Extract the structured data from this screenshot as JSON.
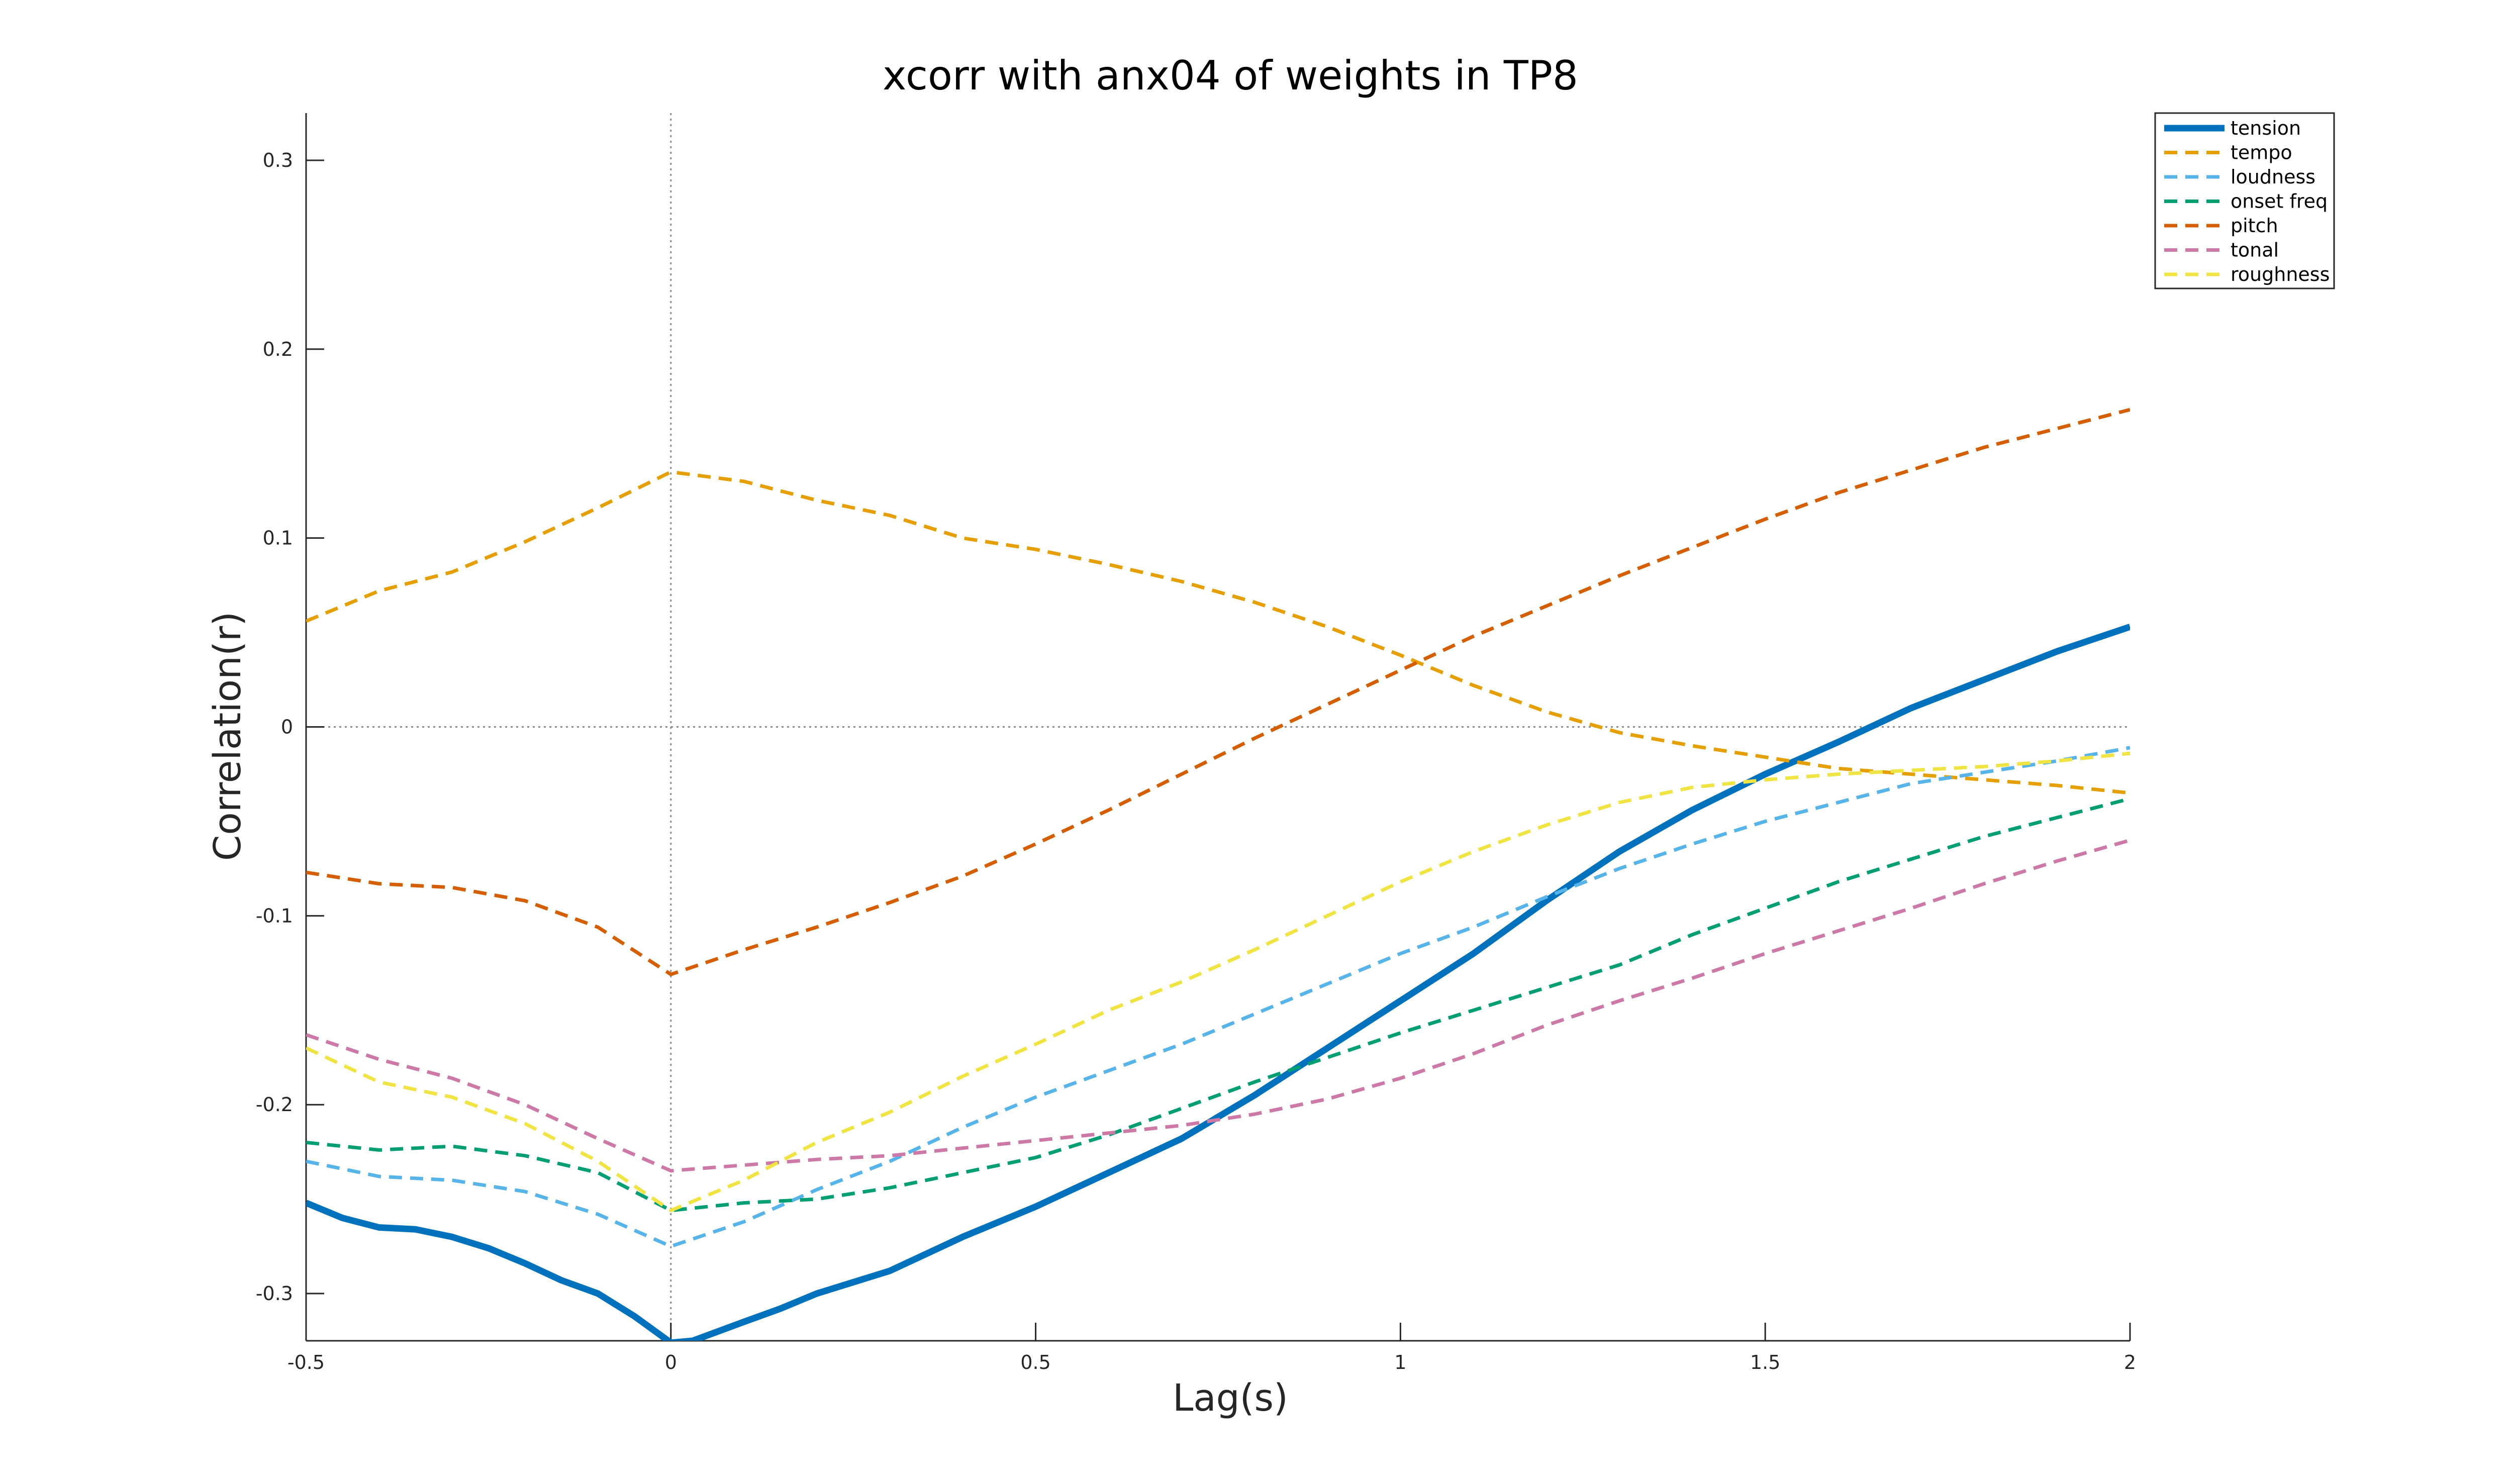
{
  "chart_data": {
    "type": "line",
    "title": "xcorr with anx04 of weights in TP8",
    "xlabel": "Lag(s)",
    "ylabel": "Correlation(r)",
    "xlim": [
      -0.5,
      2
    ],
    "ylim": [
      -0.325,
      0.325
    ],
    "xticks": [
      -0.5,
      0,
      0.5,
      1,
      1.5,
      2
    ],
    "xtick_labels": [
      "-0.5",
      "0",
      "0.5",
      "1",
      "1.5",
      "2"
    ],
    "yticks": [
      -0.3,
      -0.2,
      -0.1,
      0,
      0.1,
      0.2,
      0.3
    ],
    "ytick_labels": [
      "-0.3",
      "-0.2",
      "-0.1",
      "0",
      "0.1",
      "0.2",
      "0.3"
    ],
    "grid": false,
    "reference_lines": {
      "x0": true,
      "y0": true
    },
    "legend_position": "top-right",
    "series": [
      {
        "name": "tension",
        "color": "#0072BD",
        "dashed": false,
        "width": "thick",
        "points": [
          [
            -0.5,
            -0.252
          ],
          [
            -0.45,
            -0.26
          ],
          [
            -0.4,
            -0.265
          ],
          [
            -0.35,
            -0.266
          ],
          [
            -0.3,
            -0.27
          ],
          [
            -0.25,
            -0.276
          ],
          [
            -0.2,
            -0.284
          ],
          [
            -0.15,
            -0.293
          ],
          [
            -0.1,
            -0.3
          ],
          [
            -0.05,
            -0.312
          ],
          [
            0.0,
            -0.326
          ],
          [
            0.03,
            -0.325
          ],
          [
            0.1,
            -0.315
          ],
          [
            0.15,
            -0.308
          ],
          [
            0.2,
            -0.3
          ],
          [
            0.3,
            -0.288
          ],
          [
            0.4,
            -0.27
          ],
          [
            0.5,
            -0.254
          ],
          [
            0.6,
            -0.236
          ],
          [
            0.7,
            -0.218
          ],
          [
            0.8,
            -0.195
          ],
          [
            0.9,
            -0.17
          ],
          [
            1.0,
            -0.145
          ],
          [
            1.1,
            -0.12
          ],
          [
            1.2,
            -0.092
          ],
          [
            1.3,
            -0.066
          ],
          [
            1.4,
            -0.044
          ],
          [
            1.5,
            -0.025
          ],
          [
            1.6,
            -0.008
          ],
          [
            1.7,
            0.01
          ],
          [
            1.8,
            0.025
          ],
          [
            1.9,
            0.04
          ],
          [
            2.0,
            0.053
          ]
        ]
      },
      {
        "name": "tempo",
        "color": "#E69F00",
        "dashed": true,
        "width": "normal",
        "points": [
          [
            -0.5,
            0.056
          ],
          [
            -0.4,
            0.072
          ],
          [
            -0.3,
            0.082
          ],
          [
            -0.2,
            0.098
          ],
          [
            -0.1,
            0.116
          ],
          [
            0.0,
            0.135
          ],
          [
            0.1,
            0.13
          ],
          [
            0.2,
            0.12
          ],
          [
            0.3,
            0.112
          ],
          [
            0.4,
            0.1
          ],
          [
            0.5,
            0.094
          ],
          [
            0.6,
            0.086
          ],
          [
            0.7,
            0.077
          ],
          [
            0.8,
            0.066
          ],
          [
            0.9,
            0.053
          ],
          [
            1.0,
            0.038
          ],
          [
            1.1,
            0.022
          ],
          [
            1.2,
            0.008
          ],
          [
            1.3,
            -0.003
          ],
          [
            1.4,
            -0.01
          ],
          [
            1.5,
            -0.016
          ],
          [
            1.6,
            -0.022
          ],
          [
            1.7,
            -0.025
          ],
          [
            1.8,
            -0.028
          ],
          [
            1.9,
            -0.031
          ],
          [
            2.0,
            -0.035
          ]
        ]
      },
      {
        "name": "loudness",
        "color": "#56B4E9",
        "dashed": true,
        "width": "normal",
        "points": [
          [
            -0.5,
            -0.23
          ],
          [
            -0.4,
            -0.238
          ],
          [
            -0.3,
            -0.24
          ],
          [
            -0.2,
            -0.246
          ],
          [
            -0.1,
            -0.258
          ],
          [
            0.0,
            -0.275
          ],
          [
            0.1,
            -0.262
          ],
          [
            0.2,
            -0.245
          ],
          [
            0.3,
            -0.23
          ],
          [
            0.4,
            -0.212
          ],
          [
            0.5,
            -0.196
          ],
          [
            0.6,
            -0.182
          ],
          [
            0.7,
            -0.168
          ],
          [
            0.8,
            -0.152
          ],
          [
            0.9,
            -0.136
          ],
          [
            1.0,
            -0.12
          ],
          [
            1.1,
            -0.106
          ],
          [
            1.2,
            -0.09
          ],
          [
            1.3,
            -0.075
          ],
          [
            1.4,
            -0.062
          ],
          [
            1.5,
            -0.05
          ],
          [
            1.6,
            -0.04
          ],
          [
            1.7,
            -0.03
          ],
          [
            1.8,
            -0.024
          ],
          [
            1.9,
            -0.018
          ],
          [
            2.0,
            -0.011
          ]
        ]
      },
      {
        "name": "onset freq",
        "color": "#009E73",
        "dashed": true,
        "width": "normal",
        "points": [
          [
            -0.5,
            -0.22
          ],
          [
            -0.4,
            -0.224
          ],
          [
            -0.3,
            -0.222
          ],
          [
            -0.2,
            -0.227
          ],
          [
            -0.1,
            -0.236
          ],
          [
            0.0,
            -0.256
          ],
          [
            0.1,
            -0.252
          ],
          [
            0.2,
            -0.25
          ],
          [
            0.3,
            -0.244
          ],
          [
            0.4,
            -0.236
          ],
          [
            0.5,
            -0.228
          ],
          [
            0.6,
            -0.216
          ],
          [
            0.7,
            -0.202
          ],
          [
            0.8,
            -0.188
          ],
          [
            0.9,
            -0.175
          ],
          [
            1.0,
            -0.162
          ],
          [
            1.1,
            -0.15
          ],
          [
            1.2,
            -0.138
          ],
          [
            1.3,
            -0.126
          ],
          [
            1.4,
            -0.11
          ],
          [
            1.5,
            -0.096
          ],
          [
            1.6,
            -0.082
          ],
          [
            1.7,
            -0.07
          ],
          [
            1.8,
            -0.058
          ],
          [
            1.9,
            -0.048
          ],
          [
            2.0,
            -0.038
          ]
        ]
      },
      {
        "name": "pitch",
        "color": "#D55E00",
        "dashed": true,
        "width": "normal",
        "points": [
          [
            -0.5,
            -0.077
          ],
          [
            -0.4,
            -0.083
          ],
          [
            -0.3,
            -0.085
          ],
          [
            -0.2,
            -0.092
          ],
          [
            -0.1,
            -0.106
          ],
          [
            0.0,
            -0.131
          ],
          [
            0.1,
            -0.118
          ],
          [
            0.2,
            -0.106
          ],
          [
            0.3,
            -0.093
          ],
          [
            0.4,
            -0.079
          ],
          [
            0.5,
            -0.062
          ],
          [
            0.6,
            -0.044
          ],
          [
            0.7,
            -0.025
          ],
          [
            0.8,
            -0.006
          ],
          [
            0.9,
            0.012
          ],
          [
            1.0,
            0.03
          ],
          [
            1.1,
            0.048
          ],
          [
            1.2,
            0.064
          ],
          [
            1.3,
            0.08
          ],
          [
            1.4,
            0.095
          ],
          [
            1.5,
            0.11
          ],
          [
            1.6,
            0.124
          ],
          [
            1.7,
            0.136
          ],
          [
            1.8,
            0.148
          ],
          [
            1.9,
            0.158
          ],
          [
            2.0,
            0.168
          ]
        ]
      },
      {
        "name": "tonal",
        "color": "#CC79A7",
        "dashed": true,
        "width": "normal",
        "points": [
          [
            -0.5,
            -0.163
          ],
          [
            -0.4,
            -0.176
          ],
          [
            -0.3,
            -0.186
          ],
          [
            -0.2,
            -0.2
          ],
          [
            -0.1,
            -0.218
          ],
          [
            0.0,
            -0.235
          ],
          [
            0.1,
            -0.232
          ],
          [
            0.2,
            -0.229
          ],
          [
            0.3,
            -0.227
          ],
          [
            0.4,
            -0.223
          ],
          [
            0.5,
            -0.219
          ],
          [
            0.6,
            -0.215
          ],
          [
            0.7,
            -0.211
          ],
          [
            0.8,
            -0.205
          ],
          [
            0.9,
            -0.197
          ],
          [
            1.0,
            -0.186
          ],
          [
            1.1,
            -0.173
          ],
          [
            1.2,
            -0.158
          ],
          [
            1.3,
            -0.145
          ],
          [
            1.4,
            -0.133
          ],
          [
            1.5,
            -0.12
          ],
          [
            1.6,
            -0.108
          ],
          [
            1.7,
            -0.096
          ],
          [
            1.8,
            -0.083
          ],
          [
            1.9,
            -0.071
          ],
          [
            2.0,
            -0.06
          ]
        ]
      },
      {
        "name": "roughness",
        "color": "#F0E442",
        "dashed": true,
        "width": "normal",
        "points": [
          [
            -0.5,
            -0.17
          ],
          [
            -0.4,
            -0.188
          ],
          [
            -0.3,
            -0.196
          ],
          [
            -0.2,
            -0.21
          ],
          [
            -0.1,
            -0.23
          ],
          [
            0.0,
            -0.256
          ],
          [
            0.1,
            -0.24
          ],
          [
            0.2,
            -0.22
          ],
          [
            0.3,
            -0.204
          ],
          [
            0.4,
            -0.185
          ],
          [
            0.5,
            -0.168
          ],
          [
            0.6,
            -0.15
          ],
          [
            0.7,
            -0.135
          ],
          [
            0.8,
            -0.118
          ],
          [
            0.9,
            -0.1
          ],
          [
            1.0,
            -0.082
          ],
          [
            1.1,
            -0.066
          ],
          [
            1.2,
            -0.052
          ],
          [
            1.3,
            -0.04
          ],
          [
            1.4,
            -0.032
          ],
          [
            1.5,
            -0.028
          ],
          [
            1.6,
            -0.025
          ],
          [
            1.7,
            -0.023
          ],
          [
            1.8,
            -0.021
          ],
          [
            1.9,
            -0.018
          ],
          [
            2.0,
            -0.014
          ]
        ]
      }
    ]
  }
}
